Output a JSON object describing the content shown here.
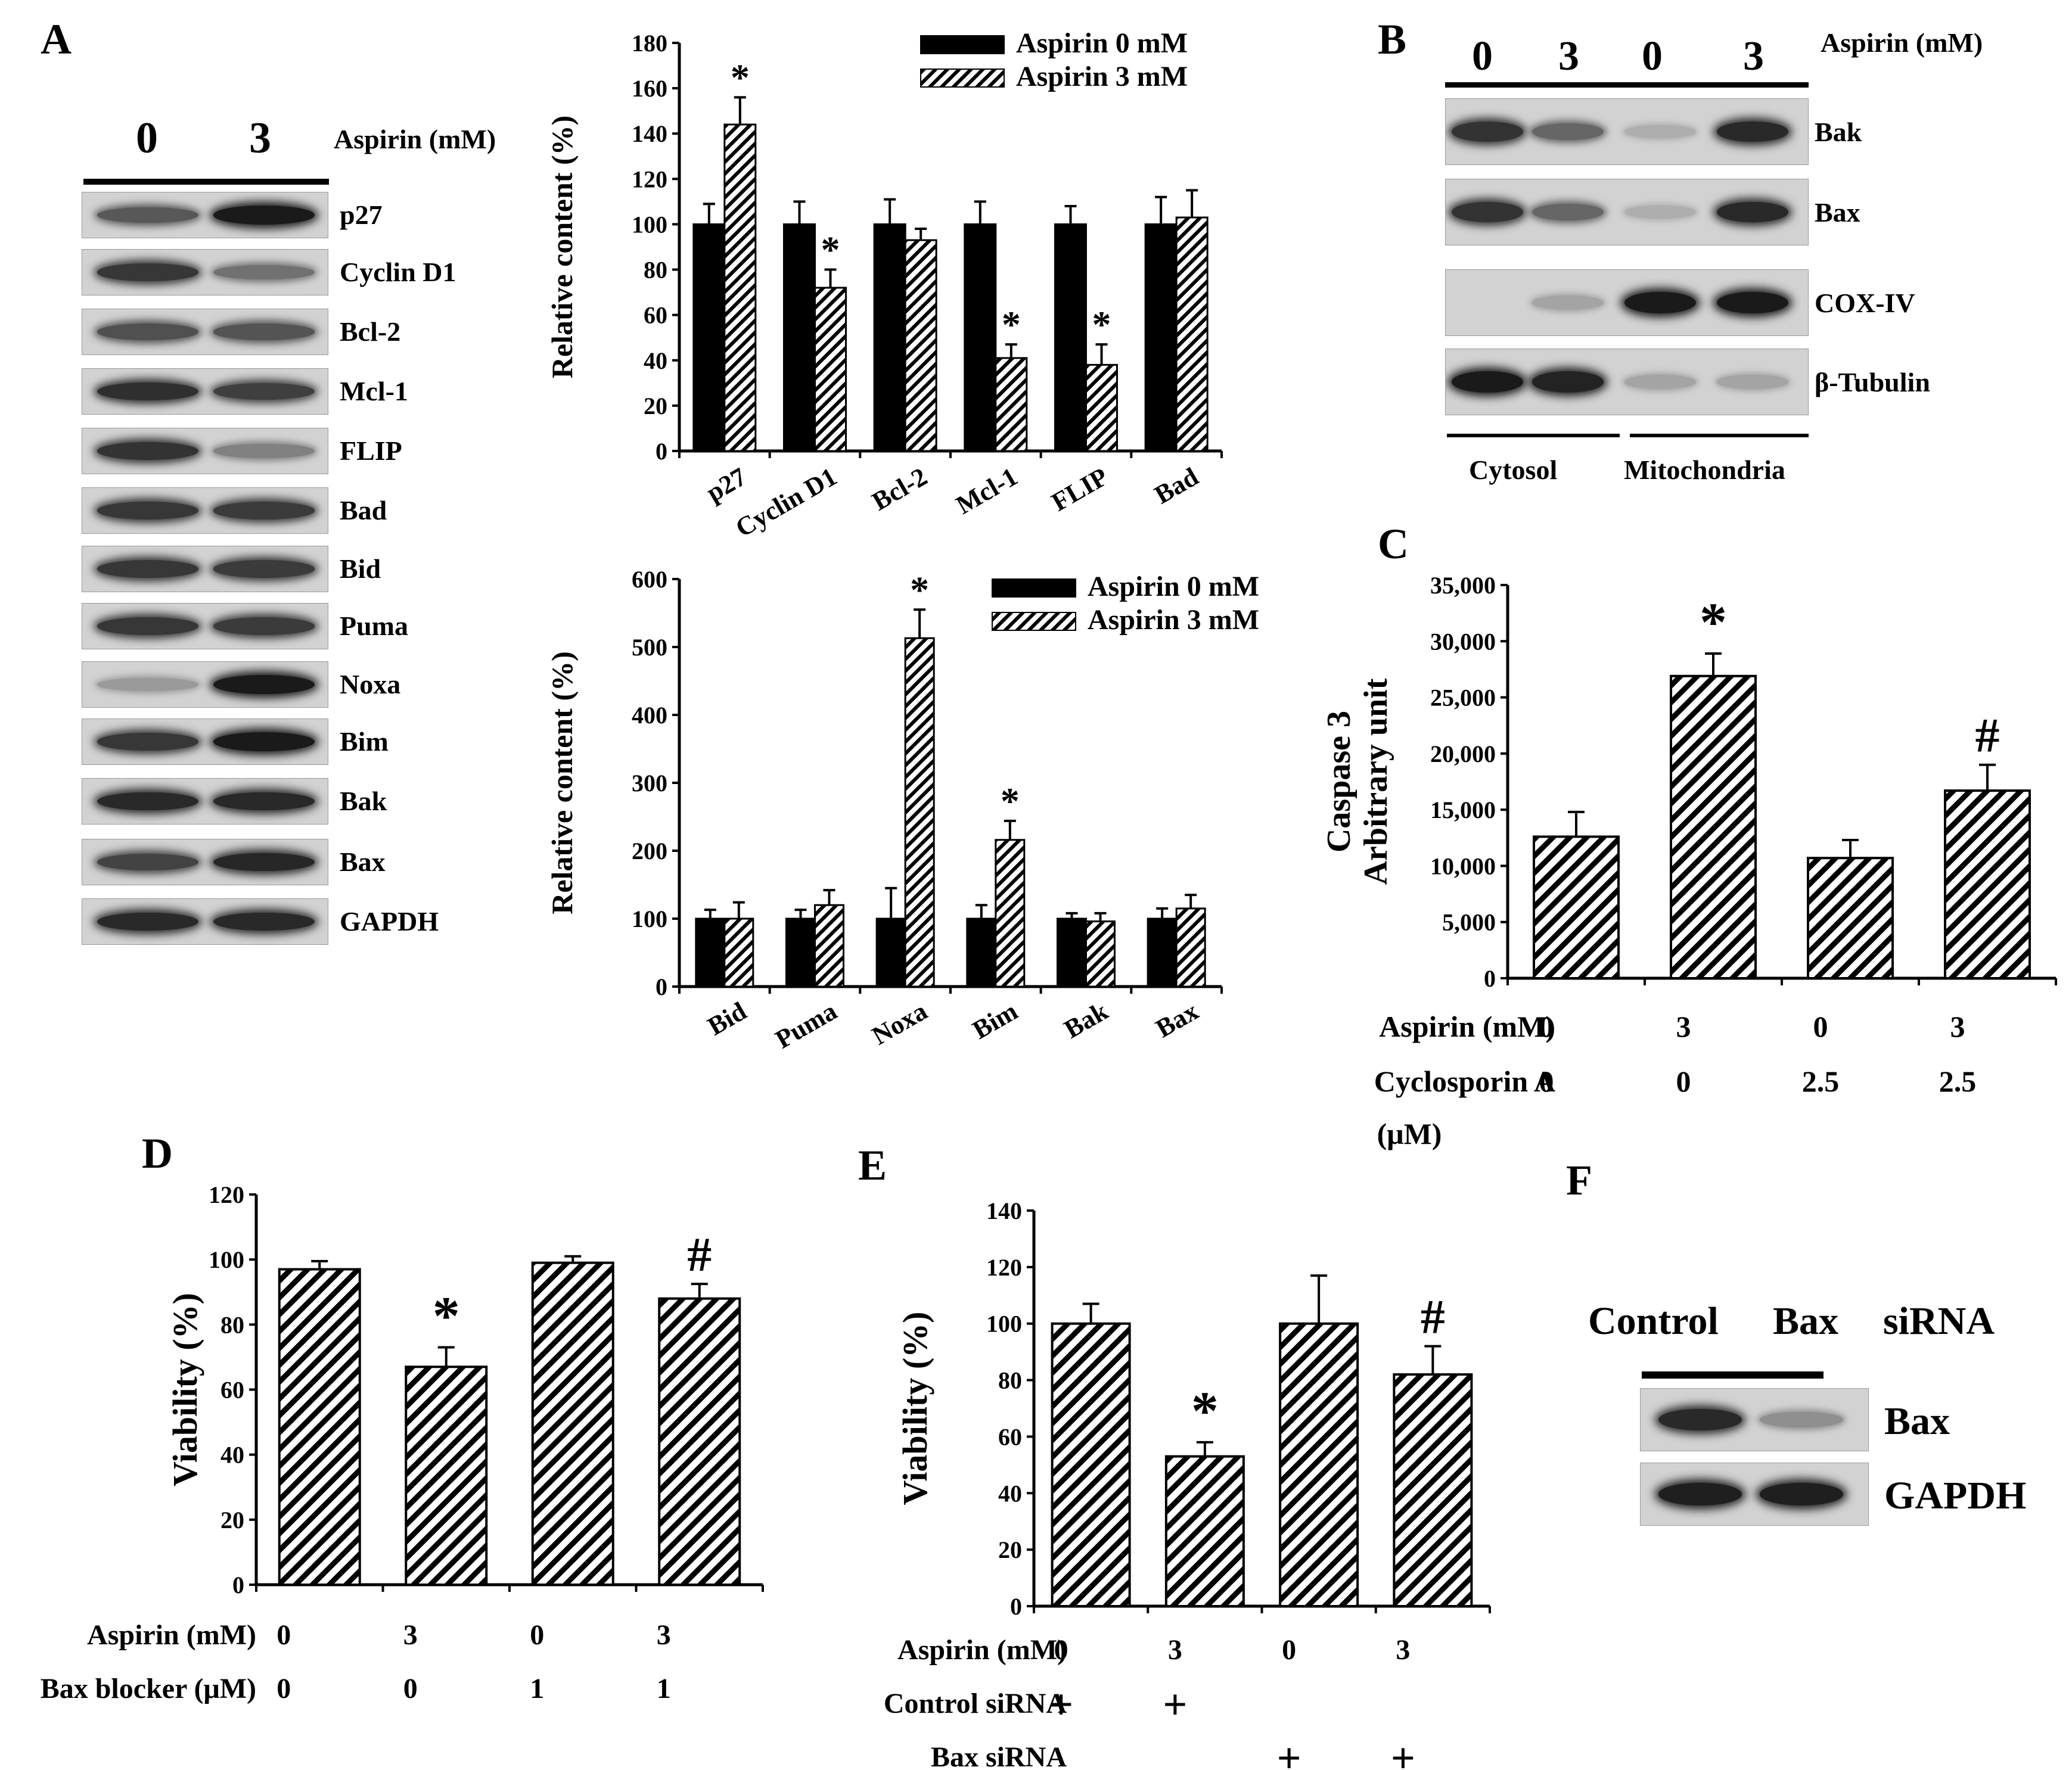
{
  "panels": {
    "A": {
      "letter": "A",
      "lane_labels": [
        "0",
        "3"
      ],
      "treatment_label": "Aspirin (mM)",
      "blot_rows": [
        {
          "label": "p27",
          "lane0": 0.62,
          "lane3": 0.92
        },
        {
          "label": "Cyclin D1",
          "lane0": 0.78,
          "lane3": 0.5
        },
        {
          "label": "Bcl-2",
          "lane0": 0.66,
          "lane3": 0.64
        },
        {
          "label": "Mcl-1",
          "lane0": 0.82,
          "lane3": 0.74
        },
        {
          "label": "FLIP",
          "lane0": 0.8,
          "lane3": 0.42
        },
        {
          "label": "Bad",
          "lane0": 0.78,
          "lane3": 0.76
        },
        {
          "label": "Bid",
          "lane0": 0.78,
          "lane3": 0.76
        },
        {
          "label": "Puma",
          "lane0": 0.78,
          "lane3": 0.76
        },
        {
          "label": "Noxa",
          "lane0": 0.3,
          "lane3": 0.92
        },
        {
          "label": "Bim",
          "lane0": 0.78,
          "lane3": 0.92
        },
        {
          "label": "Bak",
          "lane0": 0.85,
          "lane3": 0.85
        },
        {
          "label": "Bax",
          "lane0": 0.72,
          "lane3": 0.86
        },
        {
          "label": "GAPDH",
          "lane0": 0.85,
          "lane3": 0.85
        }
      ]
    },
    "B": {
      "letter": "B",
      "lane_labels": [
        "0",
        "3",
        "0",
        "3"
      ],
      "treatment_label": "Aspirin (mM)",
      "blot_rows": [
        {
          "label": "Bak",
          "lanes": [
            0.8,
            0.55,
            0.2,
            0.85
          ]
        },
        {
          "label": "Bax",
          "lanes": [
            0.8,
            0.55,
            0.2,
            0.85
          ]
        },
        {
          "label": "COX-IV",
          "lanes": [
            0.02,
            0.25,
            0.92,
            0.92
          ]
        },
        {
          "label": "β-Tubulin",
          "lanes": [
            0.92,
            0.88,
            0.25,
            0.25
          ]
        }
      ],
      "fraction_labels": [
        "Cytosol",
        "Mitochondria"
      ]
    },
    "C": {
      "letter": "C"
    },
    "D": {
      "letter": "D"
    },
    "E": {
      "letter": "E"
    },
    "F": {
      "letter": "F",
      "header_labels": [
        "Control",
        "Bax",
        "siRNA"
      ],
      "blot_rows": [
        {
          "label": "Bax",
          "lanes": [
            0.85,
            0.35
          ]
        },
        {
          "label": "GAPDH",
          "lanes": [
            0.9,
            0.9
          ]
        }
      ]
    }
  },
  "chart_data": [
    {
      "id": "A-top",
      "type": "bar",
      "categories": [
        "p27",
        "Cyclin D1",
        "Bcl-2",
        "Mcl-1",
        "FLIP",
        "Bad"
      ],
      "series": [
        {
          "name": "Aspirin 0 mM",
          "values": [
            100,
            100,
            100,
            100,
            100,
            100
          ],
          "errors": [
            9,
            10,
            11,
            10,
            8,
            12
          ]
        },
        {
          "name": "Aspirin 3 mM",
          "values": [
            144,
            72,
            93,
            41,
            38,
            103
          ],
          "errors": [
            12,
            8,
            5,
            6,
            9,
            12
          ]
        }
      ],
      "significance": [
        "*",
        "*",
        "",
        "*",
        "*",
        ""
      ],
      "ylabel": "Relative content (%)",
      "ylim": [
        0,
        180
      ],
      "yticks": [
        0,
        20,
        40,
        60,
        80,
        100,
        120,
        140,
        160,
        180
      ]
    },
    {
      "id": "A-bottom",
      "type": "bar",
      "categories": [
        "Bid",
        "Puma",
        "Noxa",
        "Bim",
        "Bak",
        "Bax"
      ],
      "series": [
        {
          "name": "Aspirin 0 mM",
          "values": [
            100,
            100,
            100,
            100,
            100,
            100
          ],
          "errors": [
            13,
            13,
            45,
            20,
            8,
            15
          ]
        },
        {
          "name": "Aspirin 3 mM",
          "values": [
            100,
            120,
            513,
            216,
            96,
            115
          ],
          "errors": [
            24,
            22,
            42,
            28,
            12,
            20
          ]
        }
      ],
      "significance": [
        "",
        "",
        "*",
        "*",
        "",
        ""
      ],
      "ylabel": "Relative content (%)",
      "ylim": [
        0,
        600
      ],
      "yticks": [
        0,
        100,
        200,
        300,
        400,
        500,
        600
      ]
    },
    {
      "id": "C",
      "type": "bar",
      "categories": [
        "1",
        "2",
        "3",
        "4"
      ],
      "values": [
        12600,
        26900,
        10700,
        16700
      ],
      "errors": [
        2200,
        2000,
        1600,
        2300
      ],
      "marks": [
        "",
        "*",
        "",
        "#"
      ],
      "ylabel_lines": [
        "Caspase 3",
        "Arbitrary unit"
      ],
      "ylim": [
        0,
        35000
      ],
      "yticks": [
        "0",
        "5,000",
        "10,000",
        "15,000",
        "20,000",
        "25,000",
        "30,000",
        "35,000"
      ],
      "ytick_values": [
        0,
        5000,
        10000,
        15000,
        20000,
        25000,
        30000,
        35000
      ],
      "conditions": [
        {
          "label": "Aspirin (mM)",
          "values": [
            "0",
            "3",
            "0",
            "3"
          ]
        },
        {
          "label": "Cyclosporin A",
          "values": [
            "0",
            "0",
            "2.5",
            "2.5"
          ]
        }
      ],
      "condition_unit": "(μM)"
    },
    {
      "id": "D",
      "type": "bar",
      "categories": [
        "1",
        "2",
        "3",
        "4"
      ],
      "values": [
        97,
        67,
        99,
        88
      ],
      "errors": [
        2.5,
        6,
        2,
        4.5
      ],
      "marks": [
        "",
        "*",
        "",
        "#"
      ],
      "ylabel": "Viability (%)",
      "ylim": [
        0,
        120
      ],
      "yticks": [
        0,
        20,
        40,
        60,
        80,
        100,
        120
      ],
      "conditions": [
        {
          "label": "Aspirin (mM)",
          "values": [
            "0",
            "3",
            "0",
            "3"
          ]
        },
        {
          "label": "Bax blocker (μM)",
          "values": [
            "0",
            "0",
            "1",
            "1"
          ]
        }
      ]
    },
    {
      "id": "E",
      "type": "bar",
      "categories": [
        "1",
        "2",
        "3",
        "4"
      ],
      "values": [
        100,
        53,
        100,
        82
      ],
      "errors": [
        7,
        5,
        17,
        10
      ],
      "marks": [
        "",
        "*",
        "",
        "#"
      ],
      "ylabel": "Viability (%)",
      "ylim": [
        0,
        140
      ],
      "yticks": [
        0,
        20,
        40,
        60,
        80,
        100,
        120,
        140
      ],
      "conditions": [
        {
          "label": "Aspirin (mM)",
          "values": [
            "0",
            "3",
            "0",
            "3"
          ]
        },
        {
          "label": "Control siRNA",
          "values": [
            "+",
            "+",
            "",
            ""
          ]
        },
        {
          "label": "Bax siRNA",
          "values": [
            "",
            "",
            "+",
            "+"
          ]
        }
      ]
    }
  ]
}
